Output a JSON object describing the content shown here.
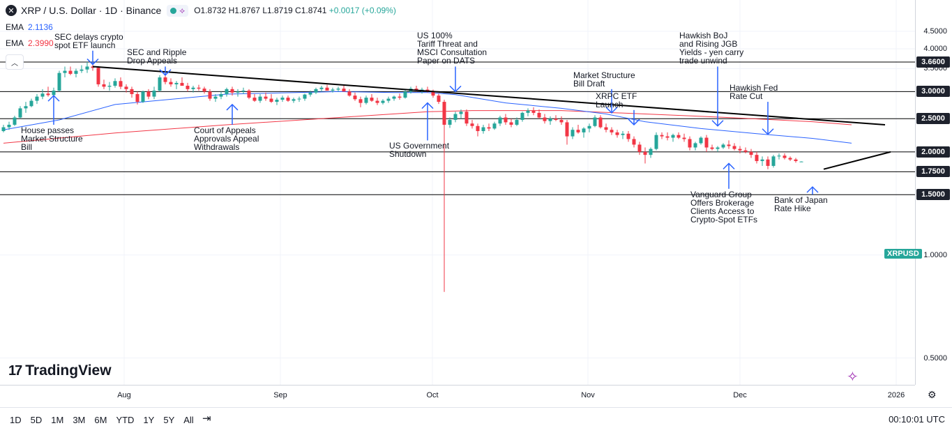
{
  "header": {
    "title": "XRP / U.S. Dollar · 1D · Binance",
    "open": "O1.8732",
    "high": "H1.8767",
    "low": "L1.8719",
    "close": "C1.8741",
    "change": "+0.0017 (+0.09%)"
  },
  "indicators": [
    {
      "name": "EMA",
      "value": "2.1136",
      "color": "#2962ff"
    },
    {
      "name": "EMA",
      "value": "2.3990",
      "color": "#f23645"
    }
  ],
  "symbol_badge": "XRPUSD",
  "logo_text": "TradingView",
  "colors": {
    "up": "#26a69a",
    "down": "#f23645",
    "ema_fast": "#2962ff",
    "ema_slow": "#f23645",
    "annotation": "#2962ff",
    "trendline": "#000000"
  },
  "chart_data": {
    "type": "candlestick",
    "price_scale": "log",
    "price_range": [
      0.45,
      4.75
    ],
    "price_ticks": [
      "4.5000",
      "4.0000",
      "3.5000",
      "3.0000",
      "2.5000",
      "2.0000",
      "1.5000",
      "1.0000",
      "0.5000"
    ],
    "horizontal_levels": [
      "3.6600",
      "3.0000",
      "2.5000",
      "2.0000",
      "1.7500",
      "1.5000"
    ],
    "time_ticks": [
      "Aug",
      "Sep",
      "Oct",
      "Nov",
      "Dec",
      "2026"
    ],
    "candles": [
      [
        2.3,
        2.4,
        2.28,
        2.36
      ],
      [
        2.36,
        2.45,
        2.32,
        2.4
      ],
      [
        2.4,
        2.55,
        2.38,
        2.52
      ],
      [
        2.52,
        2.72,
        2.5,
        2.68
      ],
      [
        2.68,
        2.8,
        2.6,
        2.72
      ],
      [
        2.72,
        2.86,
        2.7,
        2.82
      ],
      [
        2.82,
        2.95,
        2.76,
        2.9
      ],
      [
        2.9,
        3.05,
        2.85,
        2.96
      ],
      [
        2.96,
        3.1,
        2.9,
        2.93
      ],
      [
        2.93,
        3.08,
        2.88,
        3.02
      ],
      [
        3.02,
        3.45,
        3.0,
        3.4
      ],
      [
        3.4,
        3.55,
        3.3,
        3.45
      ],
      [
        3.45,
        3.55,
        3.35,
        3.38
      ],
      [
        3.38,
        3.5,
        3.3,
        3.45
      ],
      [
        3.45,
        3.58,
        3.4,
        3.48
      ],
      [
        3.48,
        3.66,
        3.4,
        3.55
      ],
      [
        3.55,
        3.65,
        3.45,
        3.52
      ],
      [
        3.52,
        3.56,
        3.1,
        3.15
      ],
      [
        3.15,
        3.25,
        3.05,
        3.1
      ],
      [
        3.1,
        3.2,
        3.02,
        3.12
      ],
      [
        3.12,
        3.28,
        3.08,
        3.22
      ],
      [
        3.22,
        3.3,
        3.05,
        3.1
      ],
      [
        3.1,
        3.15,
        2.98,
        3.05
      ],
      [
        3.05,
        3.1,
        2.88,
        2.95
      ],
      [
        2.95,
        3.0,
        2.75,
        2.8
      ],
      [
        2.8,
        3.02,
        2.78,
        3.0
      ],
      [
        3.0,
        3.05,
        2.85,
        2.9
      ],
      [
        2.9,
        3.1,
        2.85,
        3.02
      ],
      [
        3.02,
        3.35,
        3.0,
        3.3
      ],
      [
        3.3,
        3.38,
        3.15,
        3.2
      ],
      [
        3.2,
        3.28,
        3.1,
        3.15
      ],
      [
        3.15,
        3.22,
        3.05,
        3.18
      ],
      [
        3.18,
        3.3,
        3.12,
        3.12
      ],
      [
        3.12,
        3.18,
        3.0,
        3.05
      ],
      [
        3.05,
        3.12,
        2.98,
        3.08
      ],
      [
        3.08,
        3.14,
        3.02,
        3.06
      ],
      [
        3.06,
        3.1,
        2.96,
        3.0
      ],
      [
        3.0,
        3.05,
        2.82,
        2.86
      ],
      [
        2.86,
        2.95,
        2.8,
        2.9
      ],
      [
        2.9,
        3.0,
        2.85,
        2.95
      ],
      [
        2.95,
        3.08,
        2.9,
        3.05
      ],
      [
        3.05,
        3.1,
        2.92,
        2.98
      ],
      [
        2.98,
        3.05,
        2.9,
        3.0
      ],
      [
        3.0,
        3.08,
        2.95,
        3.02
      ],
      [
        3.02,
        3.05,
        2.85,
        2.88
      ],
      [
        2.88,
        2.95,
        2.8,
        2.82
      ],
      [
        2.82,
        2.95,
        2.78,
        2.9
      ],
      [
        2.9,
        2.98,
        2.82,
        2.86
      ],
      [
        2.86,
        2.95,
        2.78,
        2.8
      ],
      [
        2.8,
        2.88,
        2.74,
        2.84
      ],
      [
        2.84,
        2.92,
        2.8,
        2.88
      ],
      [
        2.88,
        2.92,
        2.8,
        2.82
      ],
      [
        2.82,
        2.88,
        2.78,
        2.85
      ],
      [
        2.85,
        2.9,
        2.8,
        2.86
      ],
      [
        2.86,
        2.96,
        2.82,
        2.94
      ],
      [
        2.94,
        3.02,
        2.9,
        2.98
      ],
      [
        2.98,
        3.08,
        2.95,
        3.05
      ],
      [
        3.05,
        3.12,
        3.0,
        3.08
      ],
      [
        3.08,
        3.14,
        3.02,
        3.02
      ],
      [
        3.02,
        3.08,
        2.98,
        3.04
      ],
      [
        3.04,
        3.1,
        3.0,
        3.06
      ],
      [
        3.06,
        3.12,
        3.02,
        3.0
      ],
      [
        3.0,
        3.05,
        2.9,
        2.92
      ],
      [
        2.92,
        2.98,
        2.82,
        2.85
      ],
      [
        2.85,
        2.9,
        2.7,
        2.78
      ],
      [
        2.78,
        2.92,
        2.75,
        2.88
      ],
      [
        2.88,
        2.95,
        2.8,
        2.82
      ],
      [
        2.82,
        2.88,
        2.74,
        2.78
      ],
      [
        2.78,
        2.85,
        2.75,
        2.82
      ],
      [
        2.82,
        2.9,
        2.78,
        2.86
      ],
      [
        2.86,
        2.92,
        2.82,
        2.9
      ],
      [
        2.9,
        2.96,
        2.84,
        2.88
      ],
      [
        2.88,
        3.05,
        2.86,
        3.0
      ],
      [
        3.0,
        3.1,
        2.96,
        3.06
      ],
      [
        3.06,
        3.12,
        3.0,
        3.02
      ],
      [
        3.02,
        3.08,
        2.96,
        3.04
      ],
      [
        3.04,
        3.1,
        2.98,
        3.0
      ],
      [
        3.0,
        3.04,
        2.88,
        2.92
      ],
      [
        2.92,
        2.96,
        2.76,
        2.8
      ],
      [
        2.8,
        2.84,
        0.78,
        2.4
      ],
      [
        2.4,
        2.52,
        2.35,
        2.48
      ],
      [
        2.48,
        2.62,
        2.44,
        2.58
      ],
      [
        2.58,
        2.66,
        2.5,
        2.62
      ],
      [
        2.62,
        2.66,
        2.38,
        2.42
      ],
      [
        2.42,
        2.48,
        2.34,
        2.38
      ],
      [
        2.38,
        2.42,
        2.22,
        2.3
      ],
      [
        2.3,
        2.4,
        2.26,
        2.36
      ],
      [
        2.36,
        2.42,
        2.3,
        2.34
      ],
      [
        2.34,
        2.45,
        2.32,
        2.42
      ],
      [
        2.42,
        2.55,
        2.38,
        2.52
      ],
      [
        2.52,
        2.58,
        2.4,
        2.44
      ],
      [
        2.44,
        2.5,
        2.36,
        2.4
      ],
      [
        2.4,
        2.52,
        2.38,
        2.48
      ],
      [
        2.48,
        2.62,
        2.45,
        2.6
      ],
      [
        2.6,
        2.68,
        2.54,
        2.64
      ],
      [
        2.64,
        2.7,
        2.56,
        2.6
      ],
      [
        2.6,
        2.66,
        2.5,
        2.52
      ],
      [
        2.52,
        2.58,
        2.42,
        2.46
      ],
      [
        2.46,
        2.54,
        2.4,
        2.5
      ],
      [
        2.5,
        2.56,
        2.46,
        2.48
      ],
      [
        2.48,
        2.54,
        2.4,
        2.44
      ],
      [
        2.44,
        2.48,
        2.1,
        2.22
      ],
      [
        2.22,
        2.36,
        2.18,
        2.32
      ],
      [
        2.32,
        2.4,
        2.26,
        2.28
      ],
      [
        2.28,
        2.36,
        2.2,
        2.34
      ],
      [
        2.34,
        2.42,
        2.28,
        2.38
      ],
      [
        2.38,
        2.56,
        2.36,
        2.52
      ],
      [
        2.52,
        2.56,
        2.34,
        2.36
      ],
      [
        2.36,
        2.42,
        2.28,
        2.32
      ],
      [
        2.32,
        2.36,
        2.24,
        2.28
      ],
      [
        2.28,
        2.32,
        2.2,
        2.24
      ],
      [
        2.24,
        2.3,
        2.18,
        2.26
      ],
      [
        2.26,
        2.3,
        2.14,
        2.18
      ],
      [
        2.18,
        2.22,
        2.06,
        2.1
      ],
      [
        2.1,
        2.14,
        1.96,
        2.0
      ],
      [
        2.0,
        2.06,
        1.85,
        1.96
      ],
      [
        1.96,
        2.06,
        1.92,
        2.04
      ],
      [
        2.04,
        2.28,
        2.02,
        2.24
      ],
      [
        2.24,
        2.28,
        2.18,
        2.22
      ],
      [
        2.22,
        2.28,
        2.16,
        2.2
      ],
      [
        2.2,
        2.26,
        2.14,
        2.24
      ],
      [
        2.24,
        2.28,
        2.18,
        2.2
      ],
      [
        2.2,
        2.26,
        2.14,
        2.18
      ],
      [
        2.18,
        2.22,
        2.02,
        2.06
      ],
      [
        2.06,
        2.14,
        2.02,
        2.12
      ],
      [
        2.12,
        2.22,
        2.1,
        2.2
      ],
      [
        2.2,
        2.24,
        2.0,
        2.06
      ],
      [
        2.06,
        2.1,
        2.02,
        2.04
      ],
      [
        2.04,
        2.08,
        2.0,
        2.06
      ],
      [
        2.06,
        2.12,
        2.04,
        2.1
      ],
      [
        2.1,
        2.16,
        2.04,
        2.08
      ],
      [
        2.08,
        2.12,
        2.02,
        2.04
      ],
      [
        2.04,
        2.08,
        1.98,
        2.02
      ],
      [
        2.02,
        2.06,
        1.98,
        2.0
      ],
      [
        2.0,
        2.04,
        1.92,
        1.96
      ],
      [
        1.96,
        2.0,
        1.85,
        1.88
      ],
      [
        1.88,
        1.94,
        1.82,
        1.9
      ],
      [
        1.9,
        1.94,
        1.78,
        1.82
      ],
      [
        1.82,
        1.96,
        1.8,
        1.94
      ],
      [
        1.94,
        1.98,
        1.9,
        1.95
      ],
      [
        1.95,
        1.98,
        1.9,
        1.92
      ],
      [
        1.92,
        1.94,
        1.88,
        1.9
      ],
      [
        1.9,
        1.92,
        1.86,
        1.88
      ],
      [
        1.8732,
        1.8767,
        1.8719,
        1.8741
      ]
    ],
    "ema_fast_points": [
      [
        0,
        2.32
      ],
      [
        10,
        2.48
      ],
      [
        20,
        2.75
      ],
      [
        40,
        2.95
      ],
      [
        60,
        3.0
      ],
      [
        70,
        2.98
      ],
      [
        76,
        2.98
      ],
      [
        81,
        2.94
      ],
      [
        90,
        2.78
      ],
      [
        100,
        2.68
      ],
      [
        108,
        2.58
      ],
      [
        115,
        2.45
      ],
      [
        125,
        2.34
      ],
      [
        135,
        2.26
      ],
      [
        145,
        2.19
      ],
      [
        152,
        2.12
      ]
    ],
    "ema_slow_points": [
      [
        0,
        2.12
      ],
      [
        20,
        2.27
      ],
      [
        40,
        2.4
      ],
      [
        60,
        2.52
      ],
      [
        76,
        2.62
      ],
      [
        84,
        2.64
      ],
      [
        100,
        2.64
      ],
      [
        115,
        2.58
      ],
      [
        130,
        2.52
      ],
      [
        145,
        2.45
      ],
      [
        152,
        2.4
      ]
    ],
    "trendlines": [
      {
        "from": [
          16,
          3.55
        ],
        "to": [
          158,
          2.4
        ]
      },
      {
        "from": [
          147,
          1.78
        ],
        "to": [
          159,
          2.0
        ]
      }
    ],
    "annotations": [
      {
        "text": "SEC delays crypto\nspot ETF launch",
        "bar": 16,
        "arrow": "down",
        "from": 3.95,
        "to": 3.6
      },
      {
        "text": "SEC and Ripple\nDrop Appeals",
        "bar": 29,
        "arrow": "down",
        "from": 3.55,
        "to": 3.35
      },
      {
        "text": "US 100%\nTariff Threat and\nMSCI Consultation\nPaper on DATS",
        "bar": 81,
        "arrow": "down",
        "from": 3.55,
        "to": 3.0
      },
      {
        "text": "Market Structure\nBill Draft",
        "bar": 109,
        "arrow": "down",
        "from": 3.05,
        "to": 2.6
      },
      {
        "text": "XRPC ETF\nLaunch",
        "bar": 113,
        "arrow": "down",
        "from": 2.65,
        "to": 2.4
      },
      {
        "text": "Hawkish BoJ\nand Rising JGB\nYields - yen carry\ntrade unwind",
        "bar": 128,
        "arrow": "down",
        "from": 3.55,
        "to": 2.38
      },
      {
        "text": "Hawkish Fed\nRate Cut",
        "bar": 137,
        "arrow": "down",
        "from": 2.8,
        "to": 2.25
      },
      {
        "text": "House passes\nMarket Structure\nBill",
        "bar": 9,
        "arrow": "up",
        "from": 2.4,
        "to": 2.92
      },
      {
        "text": "Court of Appeals\nApprovals Appeal\nWithdrawals",
        "bar": 41,
        "arrow": "up",
        "from": 2.4,
        "to": 2.75
      },
      {
        "text": "US Government\nShutdown",
        "bar": 76,
        "arrow": "up",
        "from": 2.16,
        "to": 2.78
      },
      {
        "text": "Vanguard Group\nOffers Brokerage\nClients Access to\nCrypto-Spot ETFs",
        "bar": 130,
        "arrow": "up",
        "from": 1.56,
        "to": 1.85
      },
      {
        "text": "Bank of Japan\nRate Hike",
        "bar": 145,
        "arrow": "up",
        "from": 1.5,
        "to": 1.58
      }
    ]
  },
  "ranges": [
    "1D",
    "5D",
    "1M",
    "3M",
    "6M",
    "YTD",
    "1Y",
    "5Y",
    "All"
  ],
  "clock": "00:10:01 UTC"
}
